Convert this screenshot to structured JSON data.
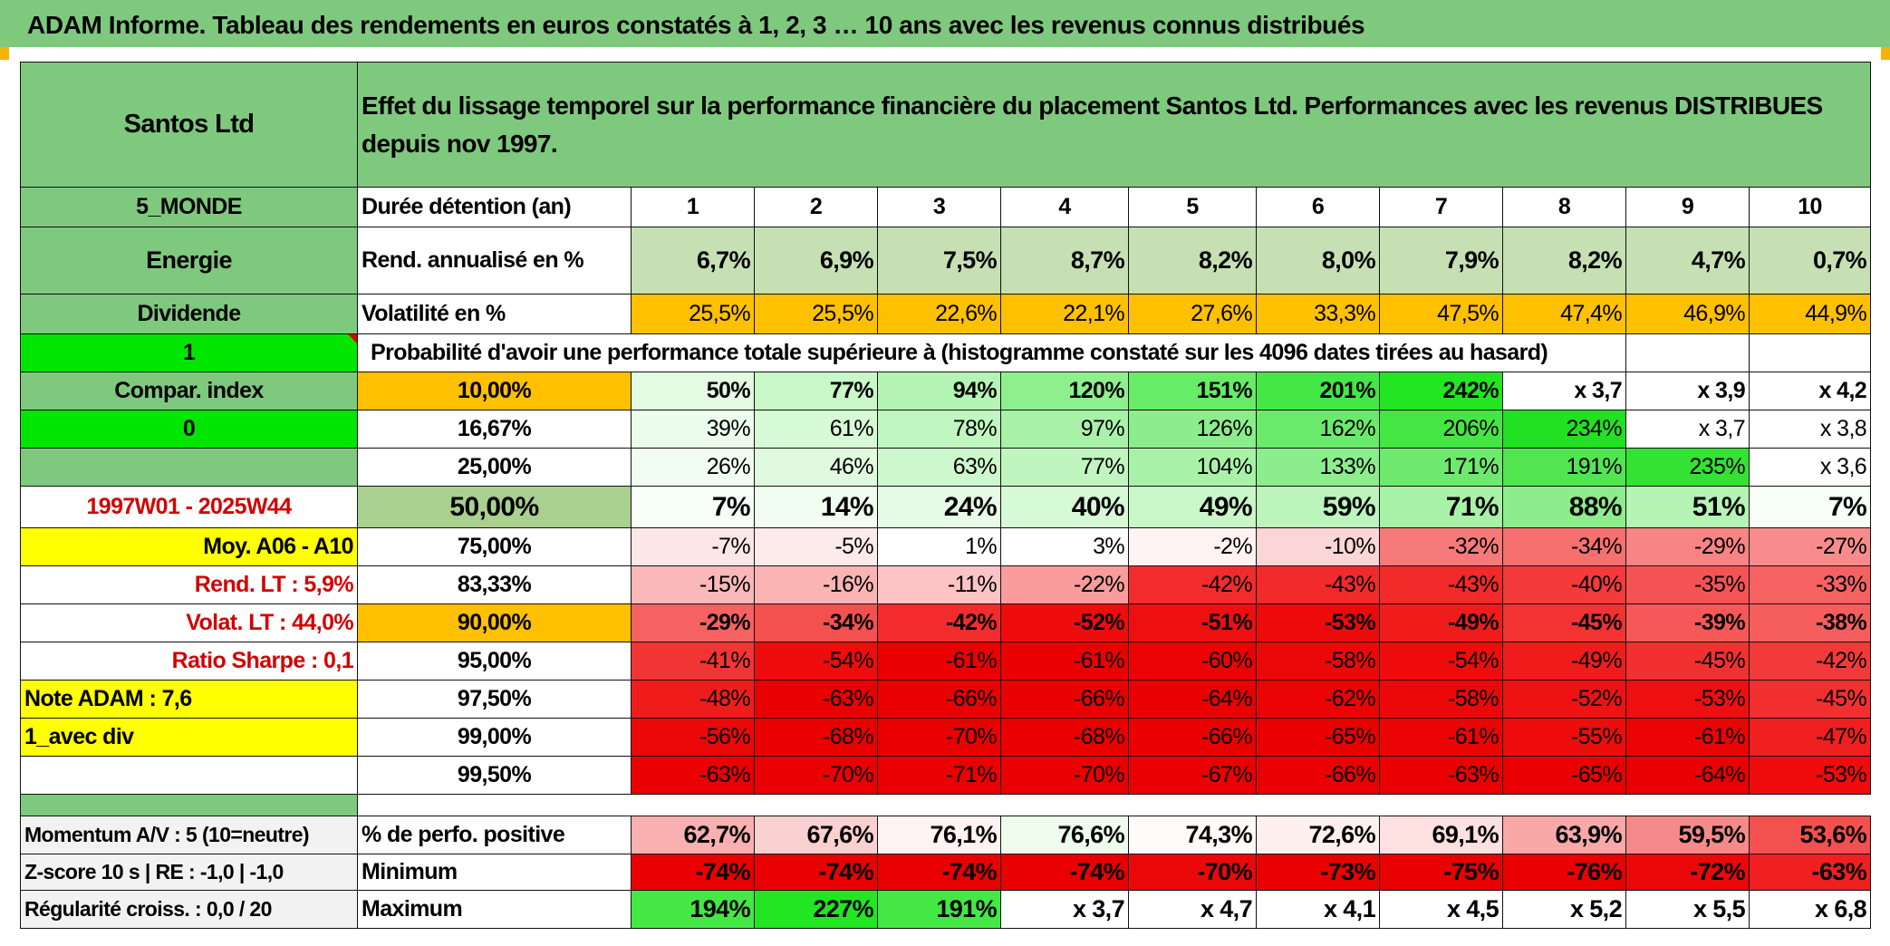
{
  "title": "ADAM Informe. Tableau des rendements en euros constatés à 1, 2, 3 … 10 ans avec les revenus connus distribués",
  "header": {
    "name": "Santos Ltd",
    "description": "Effet du lissage temporel sur la performance financière du placement Santos Ltd. Performances avec les revenus DISTRIBUES depuis nov 1997."
  },
  "left": {
    "zone": "5_MONDE",
    "sector": "Energie",
    "type": "Dividende",
    "flag1": "1",
    "compar": "Compar. index",
    "flag2": "0",
    "blank": "",
    "period": "1997W01 - 2025W44",
    "moy": "Moy. A06 - A10",
    "rend_lt": "Rend. LT :   5,9%",
    "volat_lt": "Volat. LT :   44,0%",
    "sharpe": "Ratio Sharpe :   0,1",
    "note": "Note ADAM : 7,6",
    "avec_div": "1_avec div",
    "momentum": "Momentum A/V : 5 (10=neutre)",
    "zscore": "Z-score 10 s | RE : -1,0 | -1,0",
    "regularite": "Régularité croiss. : 0,0 / 20"
  },
  "labels": {
    "duree": "Durée détention (an)",
    "rend": "Rend. annualisé en %",
    "volat": "Volatilité en %",
    "proba": "Probabilité d'avoir une performance totale supérieure à (histogramme constaté sur les 4096 dates tirées au hasard)",
    "positive": "% de perfo. positive",
    "minimum": "Minimum",
    "maximum": "Maximum"
  },
  "years": [
    "1",
    "2",
    "3",
    "4",
    "5",
    "6",
    "7",
    "8",
    "9",
    "10"
  ],
  "rend": [
    "6,7%",
    "6,9%",
    "7,5%",
    "8,7%",
    "8,2%",
    "8,0%",
    "7,9%",
    "8,2%",
    "4,7%",
    "0,7%"
  ],
  "volat": [
    "25,5%",
    "25,5%",
    "22,6%",
    "22,1%",
    "27,6%",
    "33,3%",
    "47,5%",
    "47,4%",
    "46,9%",
    "44,9%"
  ],
  "prob_rows": [
    {
      "p": "10,00%",
      "v": [
        "50%",
        "77%",
        "94%",
        "120%",
        "151%",
        "201%",
        "242%",
        "x 3,7",
        "x 3,9",
        "x 4,2"
      ]
    },
    {
      "p": "16,67%",
      "v": [
        "39%",
        "61%",
        "78%",
        "97%",
        "126%",
        "162%",
        "206%",
        "234%",
        "x 3,7",
        "x 3,8"
      ]
    },
    {
      "p": "25,00%",
      "v": [
        "26%",
        "46%",
        "63%",
        "77%",
        "104%",
        "133%",
        "171%",
        "191%",
        "235%",
        "x 3,6"
      ]
    },
    {
      "p": "50,00%",
      "v": [
        "7%",
        "14%",
        "24%",
        "40%",
        "49%",
        "59%",
        "71%",
        "88%",
        "51%",
        "7%"
      ]
    },
    {
      "p": "75,00%",
      "v": [
        "-7%",
        "-5%",
        "1%",
        "3%",
        "-2%",
        "-10%",
        "-32%",
        "-34%",
        "-29%",
        "-27%"
      ]
    },
    {
      "p": "83,33%",
      "v": [
        "-15%",
        "-16%",
        "-11%",
        "-22%",
        "-42%",
        "-43%",
        "-43%",
        "-40%",
        "-35%",
        "-33%"
      ]
    },
    {
      "p": "90,00%",
      "v": [
        "-29%",
        "-34%",
        "-42%",
        "-52%",
        "-51%",
        "-53%",
        "-49%",
        "-45%",
        "-39%",
        "-38%"
      ]
    },
    {
      "p": "95,00%",
      "v": [
        "-41%",
        "-54%",
        "-61%",
        "-61%",
        "-60%",
        "-58%",
        "-54%",
        "-49%",
        "-45%",
        "-42%"
      ]
    },
    {
      "p": "97,50%",
      "v": [
        "-48%",
        "-63%",
        "-66%",
        "-66%",
        "-64%",
        "-62%",
        "-58%",
        "-52%",
        "-53%",
        "-45%"
      ]
    },
    {
      "p": "99,00%",
      "v": [
        "-56%",
        "-68%",
        "-70%",
        "-68%",
        "-66%",
        "-65%",
        "-61%",
        "-55%",
        "-61%",
        "-47%"
      ]
    },
    {
      "p": "99,50%",
      "v": [
        "-63%",
        "-70%",
        "-71%",
        "-70%",
        "-67%",
        "-66%",
        "-63%",
        "-65%",
        "-64%",
        "-53%"
      ]
    }
  ],
  "positive": [
    "62,7%",
    "67,6%",
    "76,1%",
    "76,6%",
    "74,3%",
    "72,6%",
    "69,1%",
    "63,9%",
    "59,5%",
    "53,6%"
  ],
  "minimum": [
    "-74%",
    "-74%",
    "-74%",
    "-74%",
    "-70%",
    "-73%",
    "-75%",
    "-76%",
    "-72%",
    "-63%"
  ],
  "maximum": [
    "194%",
    "227%",
    "191%",
    "x 3,7",
    "x 4,7",
    "x 4,1",
    "x 4,5",
    "x 5,2",
    "x 5,5",
    "x 6,8"
  ],
  "colors": {
    "header_green": "#7fc97f",
    "bright_green": "#00e600",
    "yellow": "#ffff00",
    "orange": "#ffc000",
    "red_text": "#d40000"
  }
}
